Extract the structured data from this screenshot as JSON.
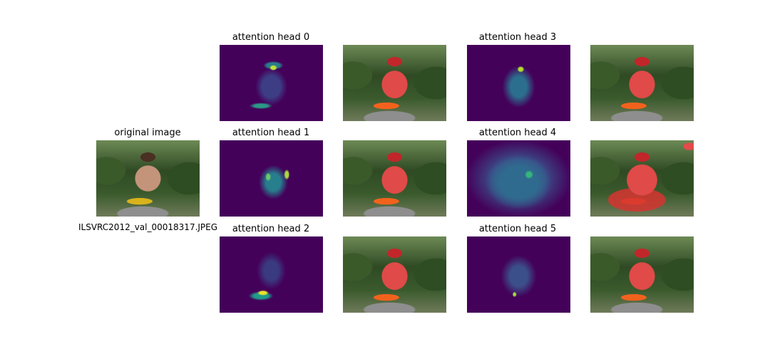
{
  "original": {
    "title": "original image",
    "caption": "ILSVRC2012_val_00018317.JPEG"
  },
  "heads": [
    {
      "title": "attention head 0"
    },
    {
      "title": "attention head 1"
    },
    {
      "title": "attention head 2"
    },
    {
      "title": "attention head 3"
    },
    {
      "title": "attention head 4"
    },
    {
      "title": "attention head 5"
    }
  ],
  "colors": {
    "heatmap_low": "#44015a",
    "heatmap_high": "#e9e329",
    "overlay": "#e04a48"
  }
}
